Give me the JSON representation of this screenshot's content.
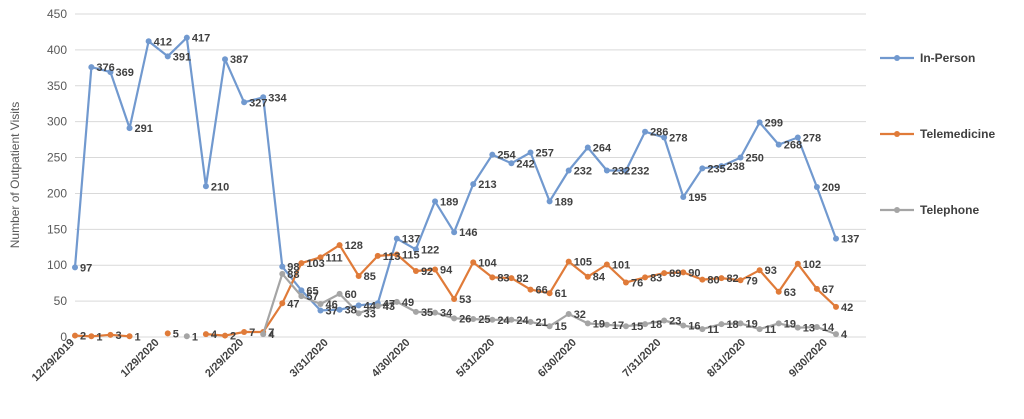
{
  "chart_data": {
    "type": "line",
    "title": "",
    "xlabel": "",
    "ylabel": "Number of Outpatient Visits",
    "ylim": [
      0,
      450
    ],
    "yticks": [
      0,
      50,
      100,
      150,
      200,
      250,
      300,
      350,
      400,
      450
    ],
    "grid": "horizontal",
    "legend_position": "right",
    "x_tick_labels": [
      {
        "label": "12/29/2019",
        "day": 0
      },
      {
        "label": "1/29/2020",
        "day": 31
      },
      {
        "label": "2/29/2020",
        "day": 62
      },
      {
        "label": "3/31/2020",
        "day": 93
      },
      {
        "label": "4/30/2020",
        "day": 123
      },
      {
        "label": "5/31/2020",
        "day": 154
      },
      {
        "label": "6/30/2020",
        "day": 184
      },
      {
        "label": "7/31/2020",
        "day": 215
      },
      {
        "label": "8/31/2020",
        "day": 246
      },
      {
        "label": "9/30/2020",
        "day": 276
      }
    ],
    "x_range": [
      0,
      290
    ],
    "series": [
      {
        "name": "In-Person",
        "color": "#7199cf",
        "x": [
          0,
          6,
          13,
          20,
          27,
          34,
          41,
          48,
          55,
          62,
          69,
          76,
          83,
          90,
          97,
          104,
          111,
          118,
          125,
          132,
          139,
          146,
          153,
          160,
          167,
          174,
          181,
          188,
          195,
          202,
          209,
          216,
          223,
          230,
          237,
          244,
          251,
          258,
          265,
          272,
          279,
          286
        ],
        "values": [
          97,
          376,
          369,
          291,
          412,
          391,
          417,
          210,
          387,
          327,
          334,
          98,
          65,
          37,
          38,
          44,
          47,
          137,
          122,
          189,
          146,
          213,
          254,
          242,
          257,
          189,
          232,
          264,
          232,
          232,
          286,
          278,
          195,
          235,
          238,
          250,
          299,
          268,
          278,
          209,
          137,
          null
        ],
        "labels": [
          "97",
          "376",
          "369",
          "291",
          "412",
          "391",
          "417",
          "210",
          "387",
          "327",
          "334",
          "98",
          "65",
          "37",
          "38",
          "44",
          "47",
          "137",
          "122",
          "189",
          "146",
          "213",
          "254",
          "242",
          "257",
          "189",
          "232",
          "264",
          "232",
          "232",
          "286",
          "278",
          "195",
          "235",
          "238",
          "250",
          "299",
          "268",
          "278",
          "209",
          "137",
          ""
        ]
      },
      {
        "name": "Telemedicine",
        "color": "#e07b39",
        "x": [
          0,
          6,
          13,
          20,
          27,
          34,
          41,
          48,
          55,
          62,
          69,
          76,
          83,
          90,
          97,
          104,
          111,
          118,
          125,
          132,
          139,
          146,
          153,
          160,
          167,
          174,
          181,
          188,
          195,
          202,
          209,
          216,
          223,
          230,
          237,
          244,
          251,
          258,
          265,
          272,
          279,
          286
        ],
        "values": [
          2,
          1,
          3,
          1,
          null,
          5,
          null,
          4,
          2,
          7,
          7,
          47,
          103,
          111,
          128,
          85,
          113,
          115,
          92,
          94,
          53,
          104,
          83,
          82,
          66,
          61,
          105,
          84,
          101,
          76,
          83,
          89,
          90,
          80,
          82,
          79,
          93,
          63,
          102,
          67,
          42,
          null
        ],
        "labels": [
          "2",
          "1",
          "3",
          "1",
          "",
          "5",
          "",
          "4",
          "2",
          "7",
          "7",
          "47",
          "103",
          "111",
          "128",
          "85",
          "113",
          "115",
          "92",
          "94",
          "53",
          "104",
          "83",
          "82",
          "66",
          "61",
          "105",
          "84",
          "101",
          "76",
          "83",
          "89",
          "90",
          "80",
          "82",
          "79",
          "93",
          "63",
          "102",
          "67",
          "42",
          ""
        ]
      },
      {
        "name": "Telephone",
        "color": "#a5a5a5",
        "x": [
          0,
          6,
          13,
          20,
          27,
          34,
          41,
          48,
          55,
          62,
          69,
          76,
          83,
          90,
          97,
          104,
          111,
          118,
          125,
          132,
          139,
          146,
          153,
          160,
          167,
          174,
          181,
          188,
          195,
          202,
          209,
          216,
          223,
          230,
          237,
          244,
          251,
          258,
          265,
          272,
          279,
          286
        ],
        "values": [
          null,
          null,
          null,
          null,
          null,
          null,
          1,
          null,
          null,
          null,
          4,
          88,
          57,
          46,
          60,
          33,
          43,
          49,
          35,
          34,
          26,
          25,
          24,
          24,
          21,
          15,
          32,
          19,
          17,
          15,
          18,
          23,
          16,
          11,
          18,
          19,
          11,
          19,
          13,
          14,
          4,
          null
        ],
        "labels": [
          "",
          "",
          "",
          "",
          "",
          "",
          "1",
          "",
          "",
          "",
          "4",
          "88",
          "57",
          "46",
          "60",
          "33",
          "43",
          "49",
          "35",
          "34",
          "26",
          "25",
          "24",
          "24",
          "21",
          "15",
          "32",
          "19",
          "17",
          "15",
          "18",
          "23",
          "16",
          "11",
          "18",
          "19",
          "11",
          "19",
          "13",
          "14",
          "4",
          ""
        ]
      }
    ]
  }
}
